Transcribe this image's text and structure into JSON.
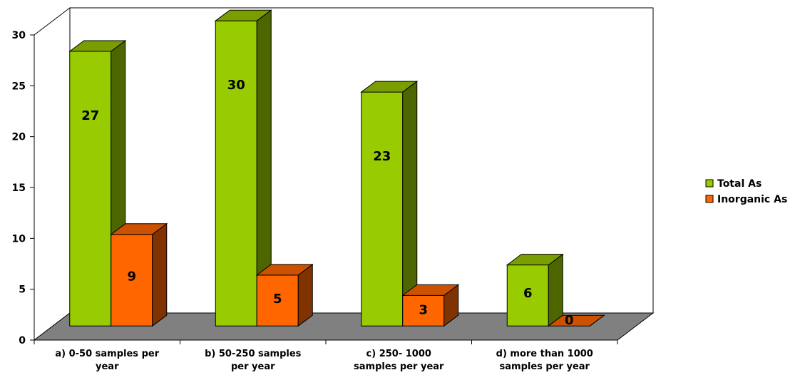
{
  "chart_data": {
    "type": "bar",
    "title": "",
    "xlabel": "",
    "ylabel": "",
    "categories": [
      [
        "a) 0-50 samples per",
        "year"
      ],
      [
        "b) 50-250 samples",
        "per year"
      ],
      [
        "c) 250- 1000",
        "samples per year"
      ],
      [
        "d) more than 1000",
        "samples per year"
      ]
    ],
    "series": [
      {
        "name": "Total As",
        "values": [
          27,
          30,
          23,
          6
        ],
        "color_front": "#99CC00",
        "color_side": "#4D6600",
        "color_top": "#7A9E00"
      },
      {
        "name": "Inorganic As",
        "values": [
          9,
          5,
          3,
          0
        ],
        "color_front": "#FF6600",
        "color_side": "#803300",
        "color_top": "#CC5200"
      }
    ],
    "ylim": [
      0,
      30
    ],
    "y_ticks": [
      0,
      5,
      10,
      15,
      20,
      25,
      30
    ],
    "grid": false,
    "legend_position": "right",
    "floor_color": "#808080",
    "wall_color": "#ffffff"
  }
}
